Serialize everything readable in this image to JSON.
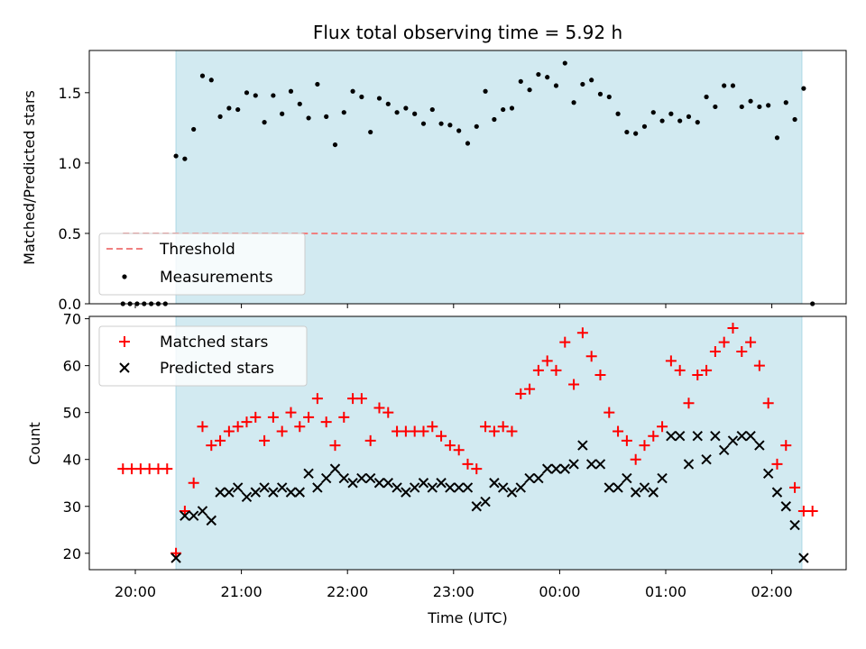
{
  "chart_data": [
    {
      "type": "scatter",
      "title": "Flux total observing time = 5.92 h",
      "xlabel": "",
      "ylabel": "Matched/Predicted stars",
      "ylim": [
        0,
        1.8
      ],
      "yticks": [
        "0.0",
        "0.5",
        "1.0",
        "1.5"
      ],
      "legend_position": "lower-left",
      "colors": {
        "shade": "#add8e6",
        "threshold": "#f08080",
        "points": "#000000"
      },
      "shaded_span": [
        "20:23",
        "02:17"
      ],
      "threshold": {
        "name": "Threshold",
        "value": 0.5,
        "x_range": [
          "19:53",
          "02:20"
        ]
      },
      "series": [
        {
          "name": "Measurements",
          "x": [
            "19:53",
            "19:57",
            "20:01",
            "20:05",
            "20:09",
            "20:13",
            "20:17",
            "20:23",
            "20:28",
            "20:33",
            "20:38",
            "20:43",
            "20:48",
            "20:53",
            "20:58",
            "21:03",
            "21:08",
            "21:13",
            "21:18",
            "21:23",
            "21:28",
            "21:33",
            "21:38",
            "21:43",
            "21:48",
            "21:53",
            "21:58",
            "22:03",
            "22:08",
            "22:13",
            "22:18",
            "22:23",
            "22:28",
            "22:33",
            "22:38",
            "22:43",
            "22:48",
            "22:53",
            "22:58",
            "23:03",
            "23:08",
            "23:13",
            "23:18",
            "23:23",
            "23:28",
            "23:33",
            "23:38",
            "23:43",
            "23:48",
            "23:53",
            "23:58",
            "00:03",
            "00:08",
            "00:13",
            "00:18",
            "00:23",
            "00:28",
            "00:33",
            "00:38",
            "00:43",
            "00:48",
            "00:53",
            "00:58",
            "01:03",
            "01:08",
            "01:13",
            "01:18",
            "01:23",
            "01:28",
            "01:33",
            "01:38",
            "01:43",
            "01:48",
            "01:53",
            "01:58",
            "02:03",
            "02:08",
            "02:13",
            "02:18",
            "02:23"
          ],
          "y": [
            0,
            0,
            0,
            0,
            0,
            0,
            0,
            1.05,
            1.03,
            1.24,
            1.62,
            1.59,
            1.33,
            1.39,
            1.38,
            1.5,
            1.48,
            1.29,
            1.48,
            1.35,
            1.51,
            1.42,
            1.32,
            1.56,
            1.33,
            1.13,
            1.36,
            1.51,
            1.47,
            1.22,
            1.46,
            1.42,
            1.36,
            1.39,
            1.35,
            1.28,
            1.38,
            1.28,
            1.27,
            1.23,
            1.14,
            1.26,
            1.51,
            1.31,
            1.38,
            1.39,
            1.58,
            1.52,
            1.63,
            1.61,
            1.55,
            1.71,
            1.43,
            1.56,
            1.59,
            1.49,
            1.47,
            1.35,
            1.22,
            1.21,
            1.26,
            1.36,
            1.3,
            1.35,
            1.3,
            1.33,
            1.29,
            1.47,
            1.4,
            1.55,
            1.55,
            1.4,
            1.44,
            1.4,
            1.41,
            1.18,
            1.43,
            1.31,
            1.53,
            0
          ]
        }
      ]
    },
    {
      "type": "scatter",
      "title": "",
      "xlabel": "Time (UTC)",
      "ylabel": "Count",
      "ylim": [
        16.5,
        70.5
      ],
      "yticks": [
        "20",
        "30",
        "40",
        "50",
        "60",
        "70"
      ],
      "xticks": [
        "20:00",
        "21:00",
        "22:00",
        "23:00",
        "00:00",
        "01:00",
        "02:00"
      ],
      "legend_position": "upper-left",
      "colors": {
        "matched": "#ff0000",
        "predicted": "#000000",
        "shade": "#add8e6"
      },
      "shaded_span": [
        "20:23",
        "02:17"
      ],
      "series": [
        {
          "name": "Matched stars",
          "marker": "plus",
          "x": [
            "19:53",
            "19:58",
            "20:03",
            "20:08",
            "20:13",
            "20:18",
            "20:23",
            "20:28",
            "20:33",
            "20:38",
            "20:43",
            "20:48",
            "20:53",
            "20:58",
            "21:03",
            "21:08",
            "21:13",
            "21:18",
            "21:23",
            "21:28",
            "21:33",
            "21:38",
            "21:43",
            "21:48",
            "21:53",
            "21:58",
            "22:03",
            "22:08",
            "22:13",
            "22:18",
            "22:23",
            "22:28",
            "22:33",
            "22:38",
            "22:43",
            "22:48",
            "22:53",
            "22:58",
            "23:03",
            "23:08",
            "23:13",
            "23:18",
            "23:23",
            "23:28",
            "23:33",
            "23:38",
            "23:43",
            "23:48",
            "23:53",
            "23:58",
            "00:03",
            "00:08",
            "00:13",
            "00:18",
            "00:23",
            "00:28",
            "00:33",
            "00:38",
            "00:43",
            "00:48",
            "00:53",
            "00:58",
            "01:03",
            "01:08",
            "01:13",
            "01:18",
            "01:23",
            "01:28",
            "01:33",
            "01:38",
            "01:43",
            "01:48",
            "01:53",
            "01:58",
            "02:03",
            "02:08",
            "02:13",
            "02:18",
            "02:23"
          ],
          "y": [
            38,
            38,
            38,
            38,
            38,
            38,
            20,
            29,
            35,
            47,
            43,
            44,
            46,
            47,
            48,
            49,
            44,
            49,
            46,
            50,
            47,
            49,
            53,
            48,
            43,
            49,
            53,
            53,
            44,
            51,
            50,
            46,
            46,
            46,
            46,
            47,
            45,
            43,
            42,
            39,
            38,
            47,
            46,
            47,
            46,
            54,
            55,
            59,
            61,
            59,
            65,
            56,
            67,
            62,
            58,
            50,
            46,
            44,
            40,
            43,
            45,
            47,
            61,
            59,
            52,
            58,
            59,
            63,
            65,
            68,
            63,
            65,
            60,
            52,
            39,
            43,
            34,
            29,
            29
          ]
        },
        {
          "name": "Predicted stars",
          "marker": "x",
          "x": [
            "20:23",
            "20:28",
            "20:33",
            "20:38",
            "20:43",
            "20:48",
            "20:53",
            "20:58",
            "21:03",
            "21:08",
            "21:13",
            "21:18",
            "21:23",
            "21:28",
            "21:33",
            "21:38",
            "21:43",
            "21:48",
            "21:53",
            "21:58",
            "22:03",
            "22:08",
            "22:13",
            "22:18",
            "22:23",
            "22:28",
            "22:33",
            "22:38",
            "22:43",
            "22:48",
            "22:53",
            "22:58",
            "23:03",
            "23:08",
            "23:13",
            "23:18",
            "23:23",
            "23:28",
            "23:33",
            "23:38",
            "23:43",
            "23:48",
            "23:53",
            "23:58",
            "00:03",
            "00:08",
            "00:13",
            "00:18",
            "00:23",
            "00:28",
            "00:33",
            "00:38",
            "00:43",
            "00:48",
            "00:53",
            "00:58",
            "01:03",
            "01:08",
            "01:13",
            "01:18",
            "01:23",
            "01:28",
            "01:33",
            "01:38",
            "01:43",
            "01:48",
            "01:53",
            "01:58",
            "02:03",
            "02:08",
            "02:13",
            "02:18"
          ],
          "y": [
            19,
            28,
            28,
            29,
            27,
            33,
            33,
            34,
            32,
            33,
            34,
            33,
            34,
            33,
            33,
            37,
            34,
            36,
            38,
            36,
            35,
            36,
            36,
            35,
            35,
            34,
            33,
            34,
            35,
            34,
            35,
            34,
            34,
            34,
            30,
            31,
            35,
            34,
            33,
            34,
            36,
            36,
            38,
            38,
            38,
            39,
            43,
            39,
            39,
            34,
            34,
            36,
            33,
            34,
            33,
            36,
            45,
            45,
            39,
            45,
            40,
            45,
            42,
            44,
            45,
            45,
            43,
            37,
            33,
            30,
            26,
            19
          ]
        }
      ]
    }
  ]
}
